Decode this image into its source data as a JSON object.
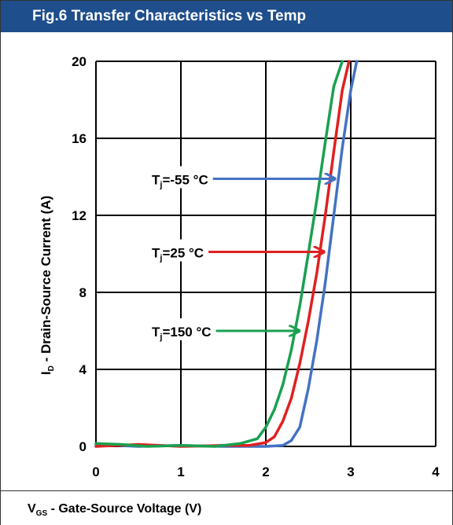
{
  "header": {
    "title": "Fig.6 Transfer Characteristics vs Temp"
  },
  "footer": {
    "xlabel_prefix": "V",
    "xlabel_sub": "GS",
    "xlabel_rest": " - Gate-Source Voltage (V)"
  },
  "colors": {
    "header_bg": "#1f4e8c",
    "series_neg55": "#4472c4",
    "series_25": "#e02020",
    "series_150": "#1aa050"
  },
  "chart_data": {
    "type": "line",
    "title": "Fig.6 Transfer Characteristics vs Temp",
    "xlabel": "VGS - Gate-Source Voltage (V)",
    "ylabel": "ID - Drain-Source Current (A)",
    "ylabel_prefix": "I",
    "ylabel_sub": "D",
    "ylabel_rest": " - Drain-Source Current (A)",
    "xlim": [
      0,
      4
    ],
    "ylim": [
      0,
      20
    ],
    "xticks": [
      0,
      1,
      2,
      3,
      4
    ],
    "yticks": [
      0,
      4,
      8,
      12,
      16,
      20
    ],
    "grid": true,
    "series": [
      {
        "name": "Tj=-55 °C",
        "label_prefix": "T",
        "label_sub": "j",
        "label_rest": "=-55 °C",
        "color": "#4472c4",
        "x": [
          0,
          0.5,
          1.0,
          1.5,
          1.8,
          2.0,
          2.2,
          2.3,
          2.4,
          2.5,
          2.6,
          2.7,
          2.8,
          2.9,
          3.0,
          3.07
        ],
        "y": [
          0.1,
          0.0,
          0.05,
          0.0,
          0.0,
          0.0,
          0.05,
          0.3,
          1.0,
          3.0,
          5.5,
          8.5,
          12.0,
          15.5,
          18.5,
          20.0
        ],
        "arrow_at": [
          2.85,
          13.9
        ]
      },
      {
        "name": "Tj=25 °C",
        "label_prefix": "T",
        "label_sub": "j",
        "label_rest": "=25 °C",
        "color": "#e02020",
        "x": [
          0,
          0.5,
          1.0,
          1.5,
          1.8,
          2.0,
          2.1,
          2.2,
          2.3,
          2.4,
          2.5,
          2.6,
          2.7,
          2.8,
          2.9,
          2.98
        ],
        "y": [
          0.0,
          0.1,
          0.0,
          0.05,
          0.05,
          0.2,
          0.5,
          1.3,
          2.5,
          4.3,
          6.5,
          9.0,
          12.0,
          15.3,
          18.5,
          20.0
        ],
        "arrow_at": [
          2.72,
          10.1
        ]
      },
      {
        "name": "Tj=150 °C",
        "label_prefix": "T",
        "label_sub": "j",
        "label_rest": "=150 °C",
        "color": "#1aa050",
        "x": [
          0,
          0.3,
          0.6,
          1.0,
          1.4,
          1.7,
          1.9,
          2.0,
          2.1,
          2.2,
          2.3,
          2.4,
          2.5,
          2.6,
          2.7,
          2.8,
          2.9
        ],
        "y": [
          0.15,
          0.1,
          0.0,
          0.05,
          0.0,
          0.15,
          0.4,
          1.0,
          1.9,
          3.2,
          5.0,
          7.3,
          10.0,
          12.8,
          15.8,
          18.7,
          20.0
        ],
        "arrow_at": [
          2.43,
          6.0
        ]
      }
    ]
  }
}
